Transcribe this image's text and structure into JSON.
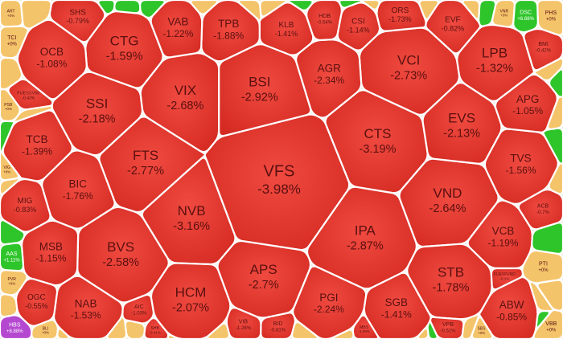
{
  "chart_data": {
    "type": "treemap",
    "shape": "voronoi",
    "colors": {
      "down": "#e8352c",
      "down_edge": "#c2251d",
      "flat": "#f4c46b",
      "up": "#2ec52a",
      "ceiling": "#b548d0",
      "floor": "#5e6ad1",
      "border": "#ffffff",
      "text_dark": "#5a1010",
      "text_light": "#ffffff"
    },
    "cells": [
      {
        "code": "VFS",
        "pct": "-3.98%",
        "status": "down"
      },
      {
        "code": "CTS",
        "pct": "-3.19%",
        "status": "down"
      },
      {
        "code": "NVB",
        "pct": "-3.16%",
        "status": "down"
      },
      {
        "code": "BSI",
        "pct": "-2.92%",
        "status": "down"
      },
      {
        "code": "IPA",
        "pct": "-2.87%",
        "status": "down"
      },
      {
        "code": "FTS",
        "pct": "-2.77%",
        "status": "down"
      },
      {
        "code": "VCI",
        "pct": "-2.73%",
        "status": "down"
      },
      {
        "code": "APS",
        "pct": "-2.7%",
        "status": "down"
      },
      {
        "code": "VIX",
        "pct": "-2.68%",
        "status": "down"
      },
      {
        "code": "VND",
        "pct": "-2.64%",
        "status": "down"
      },
      {
        "code": "BVS",
        "pct": "-2.58%",
        "status": "down"
      },
      {
        "code": "AGR",
        "pct": "-2.34%",
        "status": "down"
      },
      {
        "code": "PGI",
        "pct": "-2.24%",
        "status": "down"
      },
      {
        "code": "SSI",
        "pct": "-2.18%",
        "status": "down"
      },
      {
        "code": "EVS",
        "pct": "-2.13%",
        "status": "down"
      },
      {
        "code": "HCM",
        "pct": "-2.07%",
        "status": "down"
      },
      {
        "code": "STB",
        "pct": "-1.78%",
        "status": "down"
      },
      {
        "code": "BIC",
        "pct": "-1.76%",
        "status": "down"
      },
      {
        "code": "CTG",
        "pct": "-1.59%",
        "status": "down"
      },
      {
        "code": "TVS",
        "pct": "-1.56%",
        "status": "down"
      },
      {
        "code": "NAB",
        "pct": "-1.53%",
        "status": "down"
      },
      {
        "code": "SGB",
        "pct": "-1.41%",
        "status": "down"
      },
      {
        "code": "TCB",
        "pct": "-1.39%",
        "status": "down"
      },
      {
        "code": "LPB",
        "pct": "-1.32%",
        "status": "down"
      },
      {
        "code": "VCB",
        "pct": "-1.19%",
        "status": "down"
      },
      {
        "code": "MSB",
        "pct": "-1.15%",
        "status": "down"
      },
      {
        "code": "OCB",
        "pct": "-1.08%",
        "status": "down"
      },
      {
        "code": "APG",
        "pct": "-1.05%",
        "status": "down"
      },
      {
        "code": "ABW",
        "pct": "-0.85%",
        "status": "down"
      },
      {
        "code": "MIG",
        "pct": "-0.83%",
        "status": "down"
      },
      {
        "code": "OGC",
        "pct": "-0.55%",
        "status": "down"
      },
      {
        "code": "TPB",
        "pct": "-1.88%",
        "status": "down"
      },
      {
        "code": "VAB",
        "pct": "-1.22%",
        "status": "down"
      },
      {
        "code": "KLB",
        "pct": "-1.41%",
        "status": "down"
      },
      {
        "code": "SHS",
        "pct": "-0.79%",
        "status": "down"
      },
      {
        "code": "HDB",
        "pct": "-0.54%",
        "status": "down"
      },
      {
        "code": "CSI",
        "pct": "-1.14%",
        "status": "down"
      },
      {
        "code": "ORS",
        "pct": "-1.73%",
        "status": "down"
      },
      {
        "code": "EVF",
        "pct": "-0.82%",
        "status": "down"
      },
      {
        "code": "BMI",
        "pct": "-0.42%",
        "status": "down"
      },
      {
        "code": "ACB",
        "pct": "-0.7%",
        "status": "down"
      },
      {
        "code": "VPB",
        "pct": "-0.51%",
        "status": "down"
      },
      {
        "code": "AIC",
        "pct": "-1.03%",
        "status": "down"
      },
      {
        "code": "BID",
        "pct": "-0.81%",
        "status": "down"
      },
      {
        "code": "VIB",
        "pct": "-1.28%",
        "status": "down"
      },
      {
        "code": "MBS",
        "pct": "-1.09%",
        "status": "down"
      },
      {
        "code": "SHB",
        "pct": "-0.41%",
        "status": "down"
      },
      {
        "code": "FUEVFVND",
        "pct": "-0.1%",
        "status": "down"
      },
      {
        "code": "FUESSV50",
        "pct": "-0.43%",
        "status": "down"
      },
      {
        "code": "ART",
        "pct": "+0%",
        "status": "flat"
      },
      {
        "code": "TCI",
        "pct": "+0%",
        "status": "flat"
      },
      {
        "code": "PSB",
        "pct": "+0%",
        "status": "flat"
      },
      {
        "code": "VIG",
        "pct": "+0%",
        "status": "flat"
      },
      {
        "code": "PVR",
        "pct": "+0%",
        "status": "flat"
      },
      {
        "code": "PHS",
        "pct": "+0%",
        "status": "flat"
      },
      {
        "code": "VNR",
        "pct": "+0%",
        "status": "flat"
      },
      {
        "code": "PTI",
        "pct": "+0%",
        "status": "flat"
      },
      {
        "code": "VBB",
        "pct": "+0%",
        "status": "flat"
      },
      {
        "code": "SBS",
        "pct": "+0%",
        "status": "flat"
      },
      {
        "code": "BLI",
        "pct": "+0%",
        "status": "flat"
      },
      {
        "code": "AAS",
        "pct": "+1.11%",
        "status": "up"
      },
      {
        "code": "DSC",
        "pct": "+6.88%",
        "status": "up"
      },
      {
        "code": "HBS",
        "pct": "+8.88%",
        "status": "ceiling"
      }
    ]
  }
}
